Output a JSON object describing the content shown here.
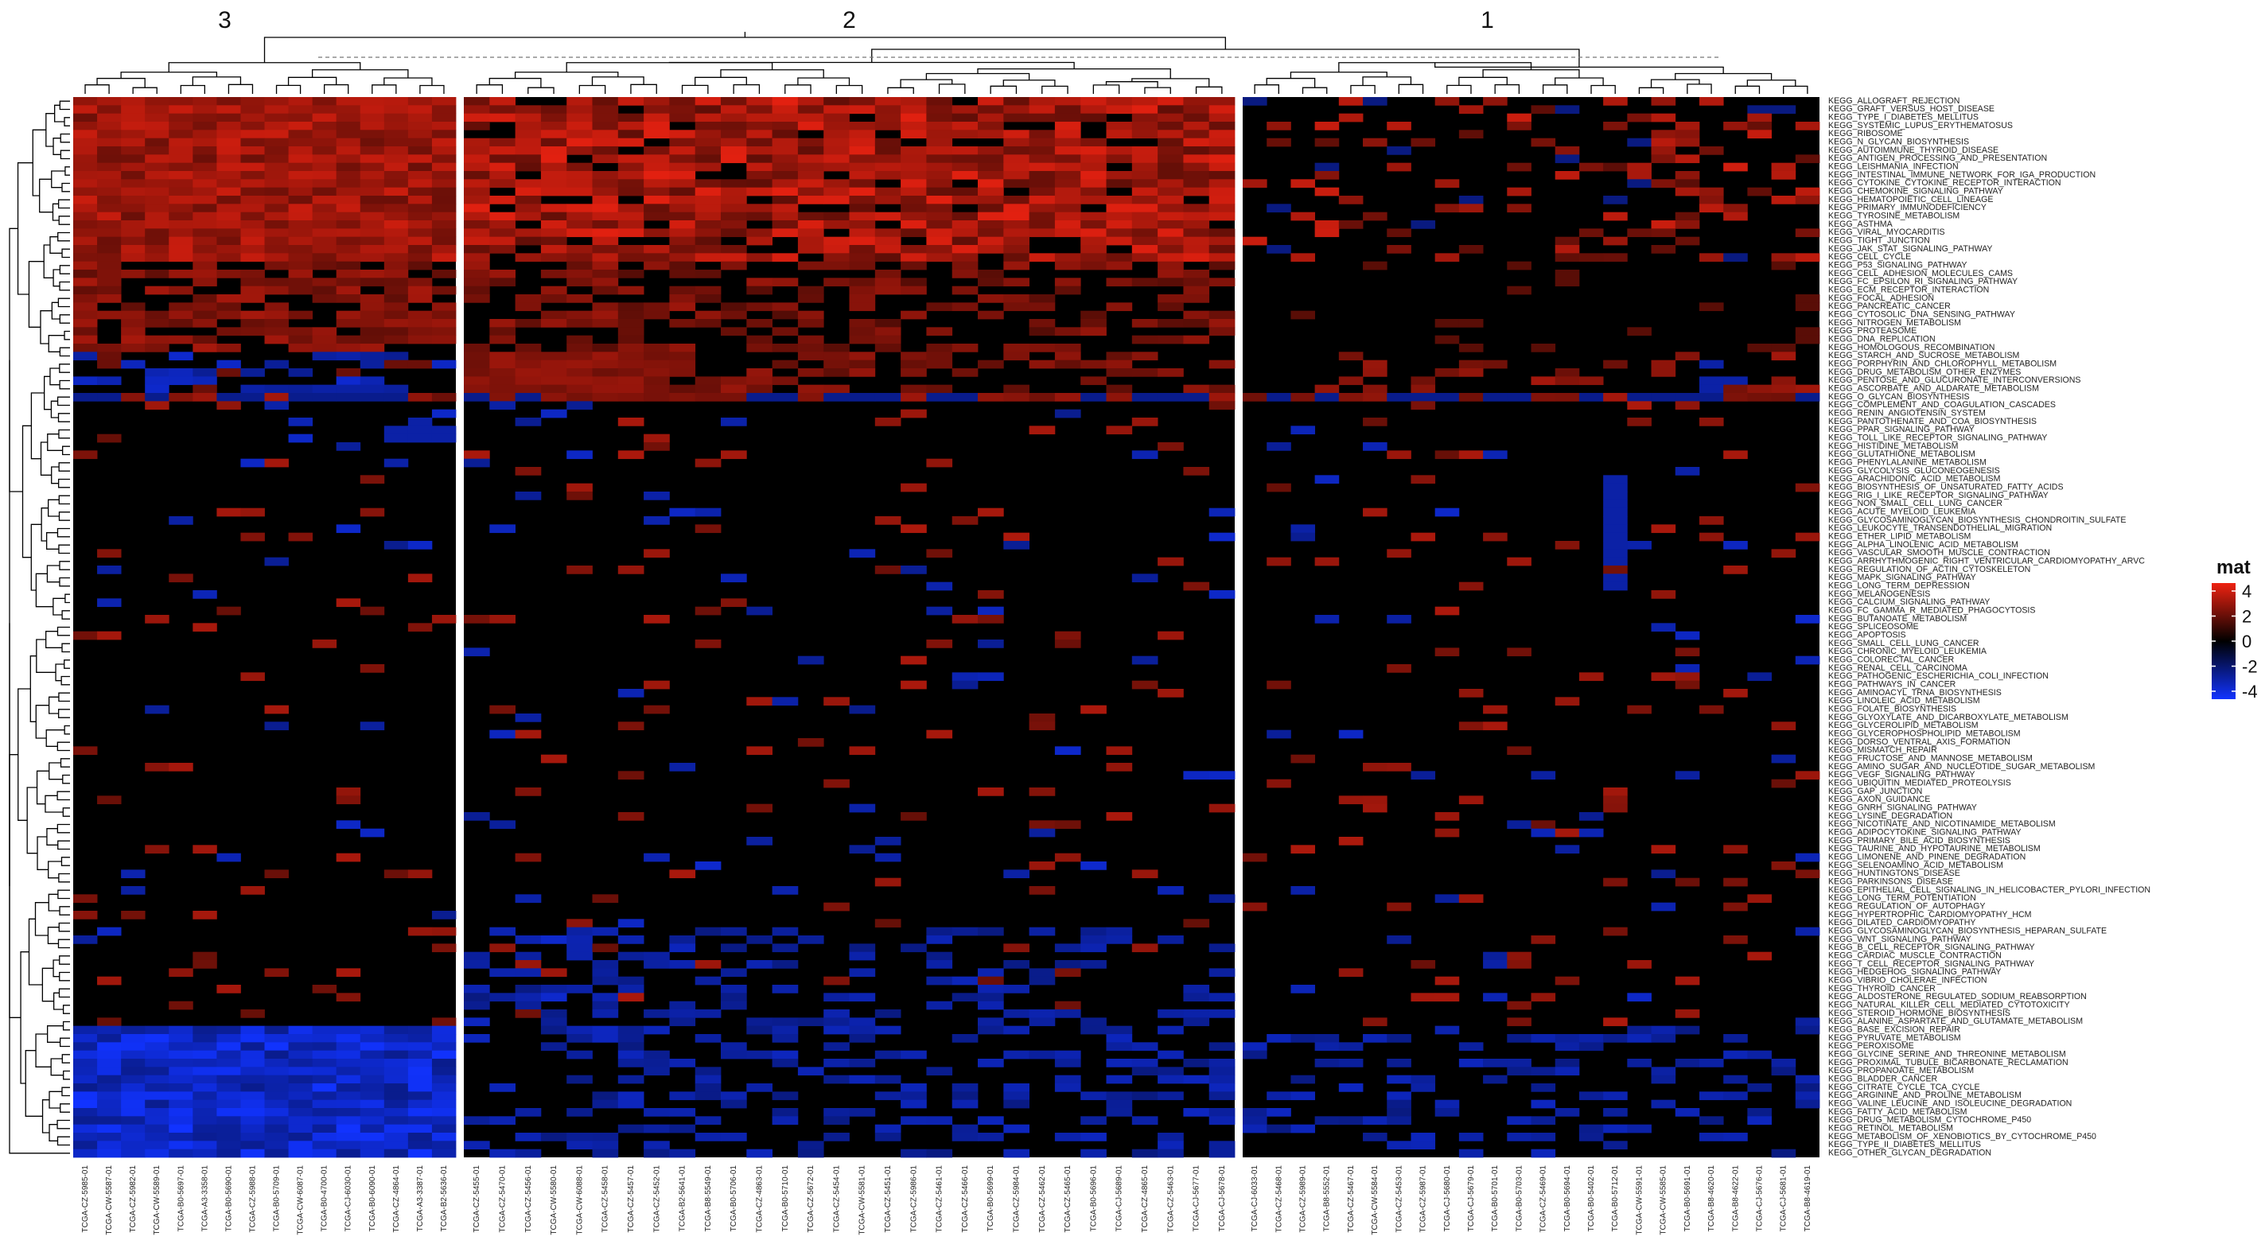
{
  "chart_data": {
    "type": "heatmap",
    "value_source": "approximate: main visible block patterns reproduced; individual cell values estimated",
    "column_clusters": [
      {
        "label": "3",
        "samples": [
          "TCGA-CZ-5985-01",
          "TCGA-CW-5587-01",
          "TCGA-CZ-5982-01",
          "TCGA-CW-5589-01",
          "TCGA-B0-5697-01",
          "TCGA-A3-3358-01",
          "TCGA-B0-5690-01",
          "TCGA-CZ-5988-01",
          "TCGA-B0-5709-01",
          "TCGA-CW-6087-01",
          "TCGA-B0-4700-01",
          "TCGA-CJ-6030-01",
          "TCGA-B0-6090-01",
          "TCGA-CZ-4864-01",
          "TCGA-A3-3387-01",
          "TCGA-B2-5636-01"
        ]
      },
      {
        "label": "2",
        "samples": [
          "TCGA-CZ-5455-01",
          "TCGA-CZ-5470-01",
          "TCGA-CZ-5456-01",
          "TCGA-CW-5580-01",
          "TCGA-CW-6088-01",
          "TCGA-CZ-5458-01",
          "TCGA-CZ-5457-01",
          "TCGA-CZ-5452-01",
          "TCGA-B2-5641-01",
          "TCGA-B8-5549-01",
          "TCGA-B0-5706-01",
          "TCGA-CZ-4863-01",
          "TCGA-B0-5710-01",
          "TCGA-CZ-5672-01",
          "TCGA-CZ-5454-01",
          "TCGA-CW-5581-01",
          "TCGA-CZ-5451-01",
          "TCGA-CZ-5986-01",
          "TCGA-CZ-5461-01",
          "TCGA-CZ-5466-01",
          "TCGA-B0-5699-01",
          "TCGA-CZ-5984-01",
          "TCGA-CZ-5462-01",
          "TCGA-CZ-5465-01",
          "TCGA-B0-5696-01",
          "TCGA-CJ-5689-01",
          "TCGA-CZ-4865-01",
          "TCGA-CZ-5463-01",
          "TCGA-CJ-5677-01",
          "TCGA-CJ-5678-01"
        ]
      },
      {
        "label": "1",
        "samples": [
          "TCGA-CJ-6033-01",
          "TCGA-CZ-5468-01",
          "TCGA-CZ-5989-01",
          "TCGA-B8-5552-01",
          "TCGA-CZ-5467-01",
          "TCGA-CW-5584-01",
          "TCGA-CZ-5453-01",
          "TCGA-CZ-5987-01",
          "TCGA-CJ-5680-01",
          "TCGA-CJ-5679-01",
          "TCGA-B0-5701-01",
          "TCGA-B0-5703-01",
          "TCGA-CZ-5469-01",
          "TCGA-B0-5694-01",
          "TCGA-B0-5402-01",
          "TCGA-B0-5712-01",
          "TCGA-CW-5591-01",
          "TCGA-CW-5585-01",
          "TCGA-B0-5691-01",
          "TCGA-B8-4620-01",
          "TCGA-B8-4622-01",
          "TCGA-CJ-5676-01",
          "TCGA-CJ-5681-01",
          "TCGA-B8-4619-01"
        ]
      }
    ],
    "rows": [
      "KEGG_ALLOGRAFT_REJECTION",
      "KEGG_GRAFT_VERSUS_HOST_DISEASE",
      "KEGG_TYPE_I_DIABETES_MELLITUS",
      "KEGG_SYSTEMIC_LUPUS_ERYTHEMATOSUS",
      "KEGG_RIBOSOME",
      "KEGG_N_GLYCAN_BIOSYNTHESIS",
      "KEGG_AUTOIMMUNE_THYROID_DISEASE",
      "KEGG_ANTIGEN_PROCESSING_AND_PRESENTATION",
      "KEGG_LEISHMANIA_INFECTION",
      "KEGG_INTESTINAL_IMMUNE_NETWORK_FOR_IGA_PRODUCTION",
      "KEGG_CYTOKINE_CYTOKINE_RECEPTOR_INTERACTION",
      "KEGG_CHEMOKINE_SIGNALING_PATHWAY",
      "KEGG_HEMATOPOIETIC_CELL_LINEAGE",
      "KEGG_PRIMARY_IMMUNODEFICIENCY",
      "KEGG_TYROSINE_METABOLISM",
      "KEGG_ASTHMA",
      "KEGG_VIRAL_MYOCARDITIS",
      "KEGG_TIGHT_JUNCTION",
      "KEGG_JAK_STAT_SIGNALING_PATHWAY",
      "KEGG_CELL_CYCLE",
      "KEGG_P53_SIGNALING_PATHWAY",
      "KEGG_CELL_ADHESION_MOLECULES_CAMS",
      "KEGG_FC_EPSILON_RI_SIGNALING_PATHWAY",
      "KEGG_ECM_RECEPTOR_INTERACTION",
      "KEGG_FOCAL_ADHESION",
      "KEGG_PANCREATIC_CANCER",
      "KEGG_CYTOSOLIC_DNA_SENSING_PATHWAY",
      "KEGG_NITROGEN_METABOLISM",
      "KEGG_PROTEASOME",
      "KEGG_DNA_REPLICATION",
      "KEGG_HOMOLOGOUS_RECOMBINATION",
      "KEGG_STARCH_AND_SUCROSE_METABOLISM",
      "KEGG_PORPHYRIN_AND_CHLOROPHYLL_METABOLISM",
      "KEGG_DRUG_METABOLISM_OTHER_ENZYMES",
      "KEGG_PENTOSE_AND_GLUCURONATE_INTERCONVERSIONS",
      "KEGG_ASCORBATE_AND_ALDARATE_METABOLISM",
      "KEGG_O_GLYCAN_BIOSYNTHESIS",
      "KEGG_COMPLEMENT_AND_COAGULATION_CASCADES",
      "KEGG_RENIN_ANGIOTENSIN_SYSTEM",
      "KEGG_PANTOTHENATE_AND_COA_BIOSYNTHESIS",
      "KEGG_PPAR_SIGNALING_PATHWAY",
      "KEGG_TOLL_LIKE_RECEPTOR_SIGNALING_PATHWAY",
      "KEGG_HISTIDINE_METABOLISM",
      "KEGG_GLUTATHIONE_METABOLISM",
      "KEGG_PHENYLALANINE_METABOLISM",
      "KEGG_GLYCOLYSIS_GLUCONEOGENESIS",
      "KEGG_ARACHIDONIC_ACID_METABOLISM",
      "KEGG_BIOSYNTHESIS_OF_UNSATURATED_FATTY_ACIDS",
      "KEGG_RIG_I_LIKE_RECEPTOR_SIGNALING_PATHWAY",
      "KEGG_NON_SMALL_CELL_LUNG_CANCER",
      "KEGG_ACUTE_MYELOID_LEUKEMIA",
      "KEGG_GLYCOSAMINOGLYCAN_BIOSYNTHESIS_CHONDROITIN_SULFATE",
      "KEGG_LEUKOCYTE_TRANSENDOTHELIAL_MIGRATION",
      "KEGG_ETHER_LIPID_METABOLISM",
      "KEGG_ALPHA_LINOLENIC_ACID_METABOLISM",
      "KEGG_VASCULAR_SMOOTH_MUSCLE_CONTRACTION",
      "KEGG_ARRHYTHMOGENIC_RIGHT_VENTRICULAR_CARDIOMYOPATHY_ARVC",
      "KEGG_REGULATION_OF_ACTIN_CYTOSKELETON",
      "KEGG_MAPK_SIGNALING_PATHWAY",
      "KEGG_LONG_TERM_DEPRESSION",
      "KEGG_MELANOGENESIS",
      "KEGG_CALCIUM_SIGNALING_PATHWAY",
      "KEGG_FC_GAMMA_R_MEDIATED_PHAGOCYTOSIS",
      "KEGG_BUTANOATE_METABOLISM",
      "KEGG_SPLICEOSOME",
      "KEGG_APOPTOSIS",
      "KEGG_SMALL_CELL_LUNG_CANCER",
      "KEGG_CHRONIC_MYELOID_LEUKEMIA",
      "KEGG_COLORECTAL_CANCER",
      "KEGG_RENAL_CELL_CARCINOMA",
      "KEGG_PATHOGENIC_ESCHERICHIA_COLI_INFECTION",
      "KEGG_PATHWAYS_IN_CANCER",
      "KEGG_AMINOACYL_TRNA_BIOSYNTHESIS",
      "KEGG_LINOLEIC_ACID_METABOLISM",
      "KEGG_FOLATE_BIOSYNTHESIS",
      "KEGG_GLYOXYLATE_AND_DICARBOXYLATE_METABOLISM",
      "KEGG_GLYCEROLIPID_METABOLISM",
      "KEGG_GLYCEROPHOSPHOLIPID_METABOLISM",
      "KEGG_DORSO_VENTRAL_AXIS_FORMATION",
      "KEGG_MISMATCH_REPAIR",
      "KEGG_FRUCTOSE_AND_MANNOSE_METABOLISM",
      "KEGG_AMINO_SUGAR_AND_NUCLEOTIDE_SUGAR_METABOLISM",
      "KEGG_VEGF_SIGNALING_PATHWAY",
      "KEGG_UBIQUITIN_MEDIATED_PROTEOLYSIS",
      "KEGG_GAP_JUNCTION",
      "KEGG_AXON_GUIDANCE",
      "KEGG_GNRH_SIGNALING_PATHWAY",
      "KEGG_LYSINE_DEGRADATION",
      "KEGG_NICOTINATE_AND_NICOTINAMIDE_METABOLISM",
      "KEGG_ADIPOCYTOKINE_SIGNALING_PATHWAY",
      "KEGG_PRIMARY_BILE_ACID_BIOSYNTHESIS",
      "KEGG_TAURINE_AND_HYPOTAURINE_METABOLISM",
      "KEGG_LIMONENE_AND_PINENE_DEGRADATION",
      "KEGG_SELENOAMINO_ACID_METABOLISM",
      "KEGG_HUNTINGTONS_DISEASE",
      "KEGG_PARKINSONS_DISEASE",
      "KEGG_EPITHELIAL_CELL_SIGNALING_IN_HELICOBACTER_PYLORI_INFECTION",
      "KEGG_LONG_TERM_POTENTIATION",
      "KEGG_REGULATION_OF_AUTOPHAGY",
      "KEGG_HYPERTROPHIC_CARDIOMYOPATHY_HCM",
      "KEGG_DILATED_CARDIOMYOPATHY",
      "KEGG_GLYCOSAMINOGLYCAN_BIOSYNTHESIS_HEPARAN_SULFATE",
      "KEGG_WNT_SIGNALING_PATHWAY",
      "KEGG_B_CELL_RECEPTOR_SIGNALING_PATHWAY",
      "KEGG_CARDIAC_MUSCLE_CONTRACTION",
      "KEGG_T_CELL_RECEPTOR_SIGNALING_PATHWAY",
      "KEGG_HEDGEHOG_SIGNALING_PATHWAY",
      "KEGG_VIBRIO_CHOLERAE_INFECTION",
      "KEGG_THYROID_CANCER",
      "KEGG_ALDOSTERONE_REGULATED_SODIUM_REABSORPTION",
      "KEGG_NATURAL_KILLER_CELL_MEDIATED_CYTOTOXICITY",
      "KEGG_STEROID_HORMONE_BIOSYNTHESIS",
      "KEGG_ALANINE_ASPARTATE_AND_GLUTAMATE_METABOLISM",
      "KEGG_BASE_EXCISION_REPAIR",
      "KEGG_PYRUVATE_METABOLISM",
      "KEGG_PEROXISOME",
      "KEGG_GLYCINE_SERINE_AND_THREONINE_METABOLISM",
      "KEGG_PROXIMAL_TUBULE_BICARBONATE_RECLAMATION",
      "KEGG_PROPANOATE_METABOLISM",
      "KEGG_BLADDER_CANCER",
      "KEGG_CITRATE_CYCLE_TCA_CYCLE",
      "KEGG_ARGININE_AND_PROLINE_METABOLISM",
      "KEGG_VALINE_LEUCINE_AND_ISOLEUCINE_DEGRADATION",
      "KEGG_FATTY_ACID_METABOLISM",
      "KEGG_DRUG_METABOLISM_CYTOCHROME_P450",
      "KEGG_RETINOL_METABOLISM",
      "KEGG_METABOLISM_OF_XENOBIOTICS_BY_CYTOCHROME_P450",
      "KEGG_TYPE_II_DIABETES_MELLITUS",
      "KEGG_OTHER_GLYCAN_DEGRADATION"
    ],
    "legend": {
      "title": "mat",
      "ticks": [
        4,
        2,
        0,
        -2,
        -4
      ],
      "colors": {
        "high": "#ee2211",
        "mid": "#000000",
        "low": "#1133ff"
      }
    },
    "color_range": [
      -4,
      4
    ]
  }
}
